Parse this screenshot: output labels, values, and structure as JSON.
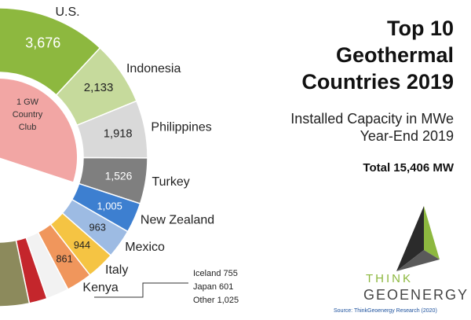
{
  "chart_data": {
    "type": "semi-donut",
    "title": [
      "Top 10",
      "Geothermal",
      "Countries 2019"
    ],
    "subtitle": [
      "Installed Capacity in MWe",
      "Year-End 2019"
    ],
    "total_label": "Total 15,406 MW",
    "inner_label": [
      "1 GW",
      "Country",
      "Club"
    ],
    "categories": [
      "U.S.",
      "Indonesia",
      "Philippines",
      "Turkey",
      "New Zealand",
      "Mexico",
      "Italy",
      "Kenya",
      "Iceland",
      "Japan",
      "Other"
    ],
    "values": [
      3676,
      2133,
      1918,
      1526,
      1005,
      963,
      944,
      861,
      755,
      601,
      1025
    ],
    "value_labels": [
      "3,676",
      "2,133",
      "1,918",
      "1,526",
      "1,005",
      "963",
      "944",
      "861",
      "755",
      "601",
      "1,025"
    ],
    "colors": [
      "#8db83f",
      "#c6da9c",
      "#d9d9d9",
      "#7f7f7f",
      "#3d7fd0",
      "#9dbbe3",
      "#f5c443",
      "#f0965c",
      "#f2f2f2",
      "#c4262c",
      "#8c8a5c"
    ],
    "logo": [
      "THINK",
      "GEOENERGY"
    ],
    "source": "Source: ThinkGeoenergy Research (2020)"
  }
}
